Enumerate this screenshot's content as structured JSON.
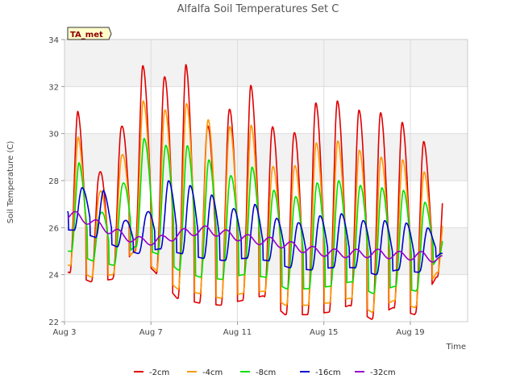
{
  "chart_data": {
    "type": "line",
    "title": "Alfalfa Soil Temperatures Set C",
    "xlabel": "Time",
    "ylabel": "Soil Temperature (C)",
    "badge": "TA_met",
    "ylim": [
      22,
      34
    ],
    "xlim": [
      "2023-08-03",
      "2023-08-21"
    ],
    "yticks": [
      "22",
      "24",
      "26",
      "28",
      "30",
      "32",
      "34"
    ],
    "xticks": [
      {
        "label": "Aug 3",
        "date": "2023-08-03"
      },
      {
        "label": "Aug 7",
        "date": "2023-08-07"
      },
      {
        "label": "Aug 11",
        "date": "2023-08-11"
      },
      {
        "label": "Aug 15",
        "date": "2023-08-15"
      },
      {
        "label": "Aug 19",
        "date": "2023-08-19"
      }
    ],
    "grid": true,
    "legend_position": "bottom",
    "series": [
      {
        "name": "-2cm",
        "color": "#e00000",
        "max": [
          31.0,
          28.3,
          30.2,
          32.9,
          32.4,
          33.0,
          30.3,
          31.0,
          32.1,
          30.3,
          30.0,
          31.3,
          31.4,
          31.0,
          30.9,
          30.5,
          29.7,
          28.3
        ],
        "min": [
          24.1,
          23.7,
          23.8,
          25.0,
          24.1,
          23.0,
          22.8,
          22.7,
          22.9,
          23.1,
          22.3,
          22.3,
          22.4,
          22.7,
          22.1,
          22.6,
          22.3,
          23.9
        ]
      },
      {
        "name": "-4cm",
        "color": "#ff9900",
        "max": [
          29.9,
          27.5,
          29.0,
          31.4,
          31.0,
          31.3,
          30.6,
          30.3,
          30.4,
          28.6,
          28.6,
          29.6,
          29.7,
          29.3,
          29.0,
          28.9,
          28.4,
          27.2
        ],
        "min": [
          24.4,
          23.9,
          24.0,
          25.0,
          24.2,
          23.4,
          23.2,
          23.0,
          23.2,
          23.3,
          22.7,
          22.7,
          22.8,
          23.0,
          22.4,
          22.9,
          22.6,
          24.1
        ]
      },
      {
        "name": "-8cm",
        "color": "#00e000",
        "max": [
          28.8,
          26.6,
          27.8,
          29.8,
          29.5,
          29.5,
          28.9,
          28.2,
          28.6,
          27.6,
          27.3,
          27.9,
          28.0,
          27.8,
          27.7,
          27.6,
          27.1,
          26.2
        ],
        "min": [
          25.0,
          24.6,
          24.4,
          25.2,
          24.9,
          24.2,
          23.9,
          23.8,
          24.0,
          23.9,
          23.4,
          23.4,
          23.5,
          23.7,
          23.2,
          23.5,
          23.3,
          24.7
        ]
      },
      {
        "name": "-16cm",
        "color": "#0000cc",
        "max": [
          27.7,
          27.6,
          26.3,
          26.6,
          28.0,
          27.8,
          27.4,
          26.8,
          27.0,
          26.4,
          26.2,
          26.5,
          26.6,
          26.3,
          26.3,
          26.2,
          26.0,
          25.5
        ],
        "min": [
          25.9,
          25.6,
          25.2,
          24.9,
          25.1,
          24.9,
          24.7,
          24.6,
          24.7,
          24.6,
          24.3,
          24.2,
          24.3,
          24.3,
          24.0,
          24.2,
          24.1,
          24.9
        ]
      },
      {
        "name": "-32cm",
        "color": "#9900cc",
        "avg": [
          26.5,
          26.1,
          25.7,
          25.4,
          25.5,
          25.8,
          25.9,
          25.7,
          25.5,
          25.4,
          25.2,
          25.0,
          24.9,
          24.9,
          24.9,
          24.8,
          24.8,
          24.6
        ]
      }
    ]
  }
}
